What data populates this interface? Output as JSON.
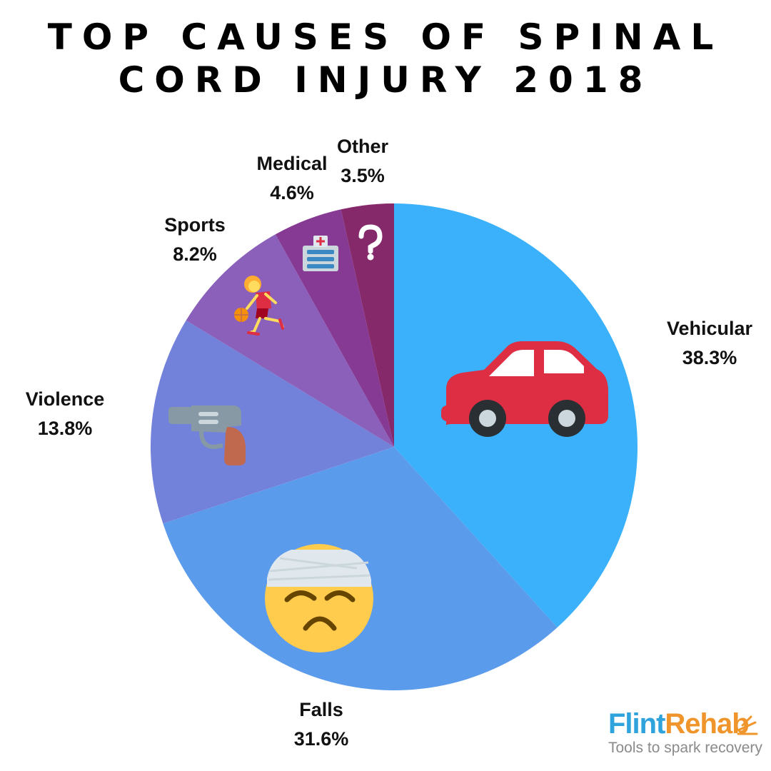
{
  "title_lines": [
    "TOP CAUSES OF SPINAL",
    "CORD INJURY 2018"
  ],
  "chart_data": {
    "type": "pie",
    "title": "TOP CAUSES OF SPINAL CORD INJURY 2018",
    "slices": [
      {
        "name": "Vehicular",
        "label": "Vehicular",
        "value": 38.3,
        "value_label": "38.3%",
        "color": "#3ab1fa",
        "icon": "car-icon"
      },
      {
        "name": "Falls",
        "label": "Falls",
        "value": 31.6,
        "value_label": "31.6%",
        "color": "#5b9bec",
        "icon": "bandaged-face-icon"
      },
      {
        "name": "Violence",
        "label": "Violence",
        "value": 13.8,
        "value_label": "13.8%",
        "color": "#7281d9",
        "icon": "pistol-icon"
      },
      {
        "name": "Sports",
        "label": "Sports",
        "value": 8.2,
        "value_label": "8.2%",
        "color": "#8a60ba",
        "icon": "basketball-player-icon"
      },
      {
        "name": "Medical",
        "label": "Medical",
        "value": 4.6,
        "value_label": "4.6%",
        "color": "#863a93",
        "icon": "hospital-icon"
      },
      {
        "name": "Other",
        "label": "Other",
        "value": 3.5,
        "value_label": "3.5%",
        "color": "#86296b",
        "icon": "question-mark-icon"
      }
    ],
    "start": "12 o'clock",
    "direction": "clockwise"
  },
  "brand": {
    "name_part1": "Flint",
    "name_part2": "Rehab",
    "tagline": "Tools to spark recovery",
    "color1": "#2ea3dc",
    "color2": "#f0952b"
  }
}
